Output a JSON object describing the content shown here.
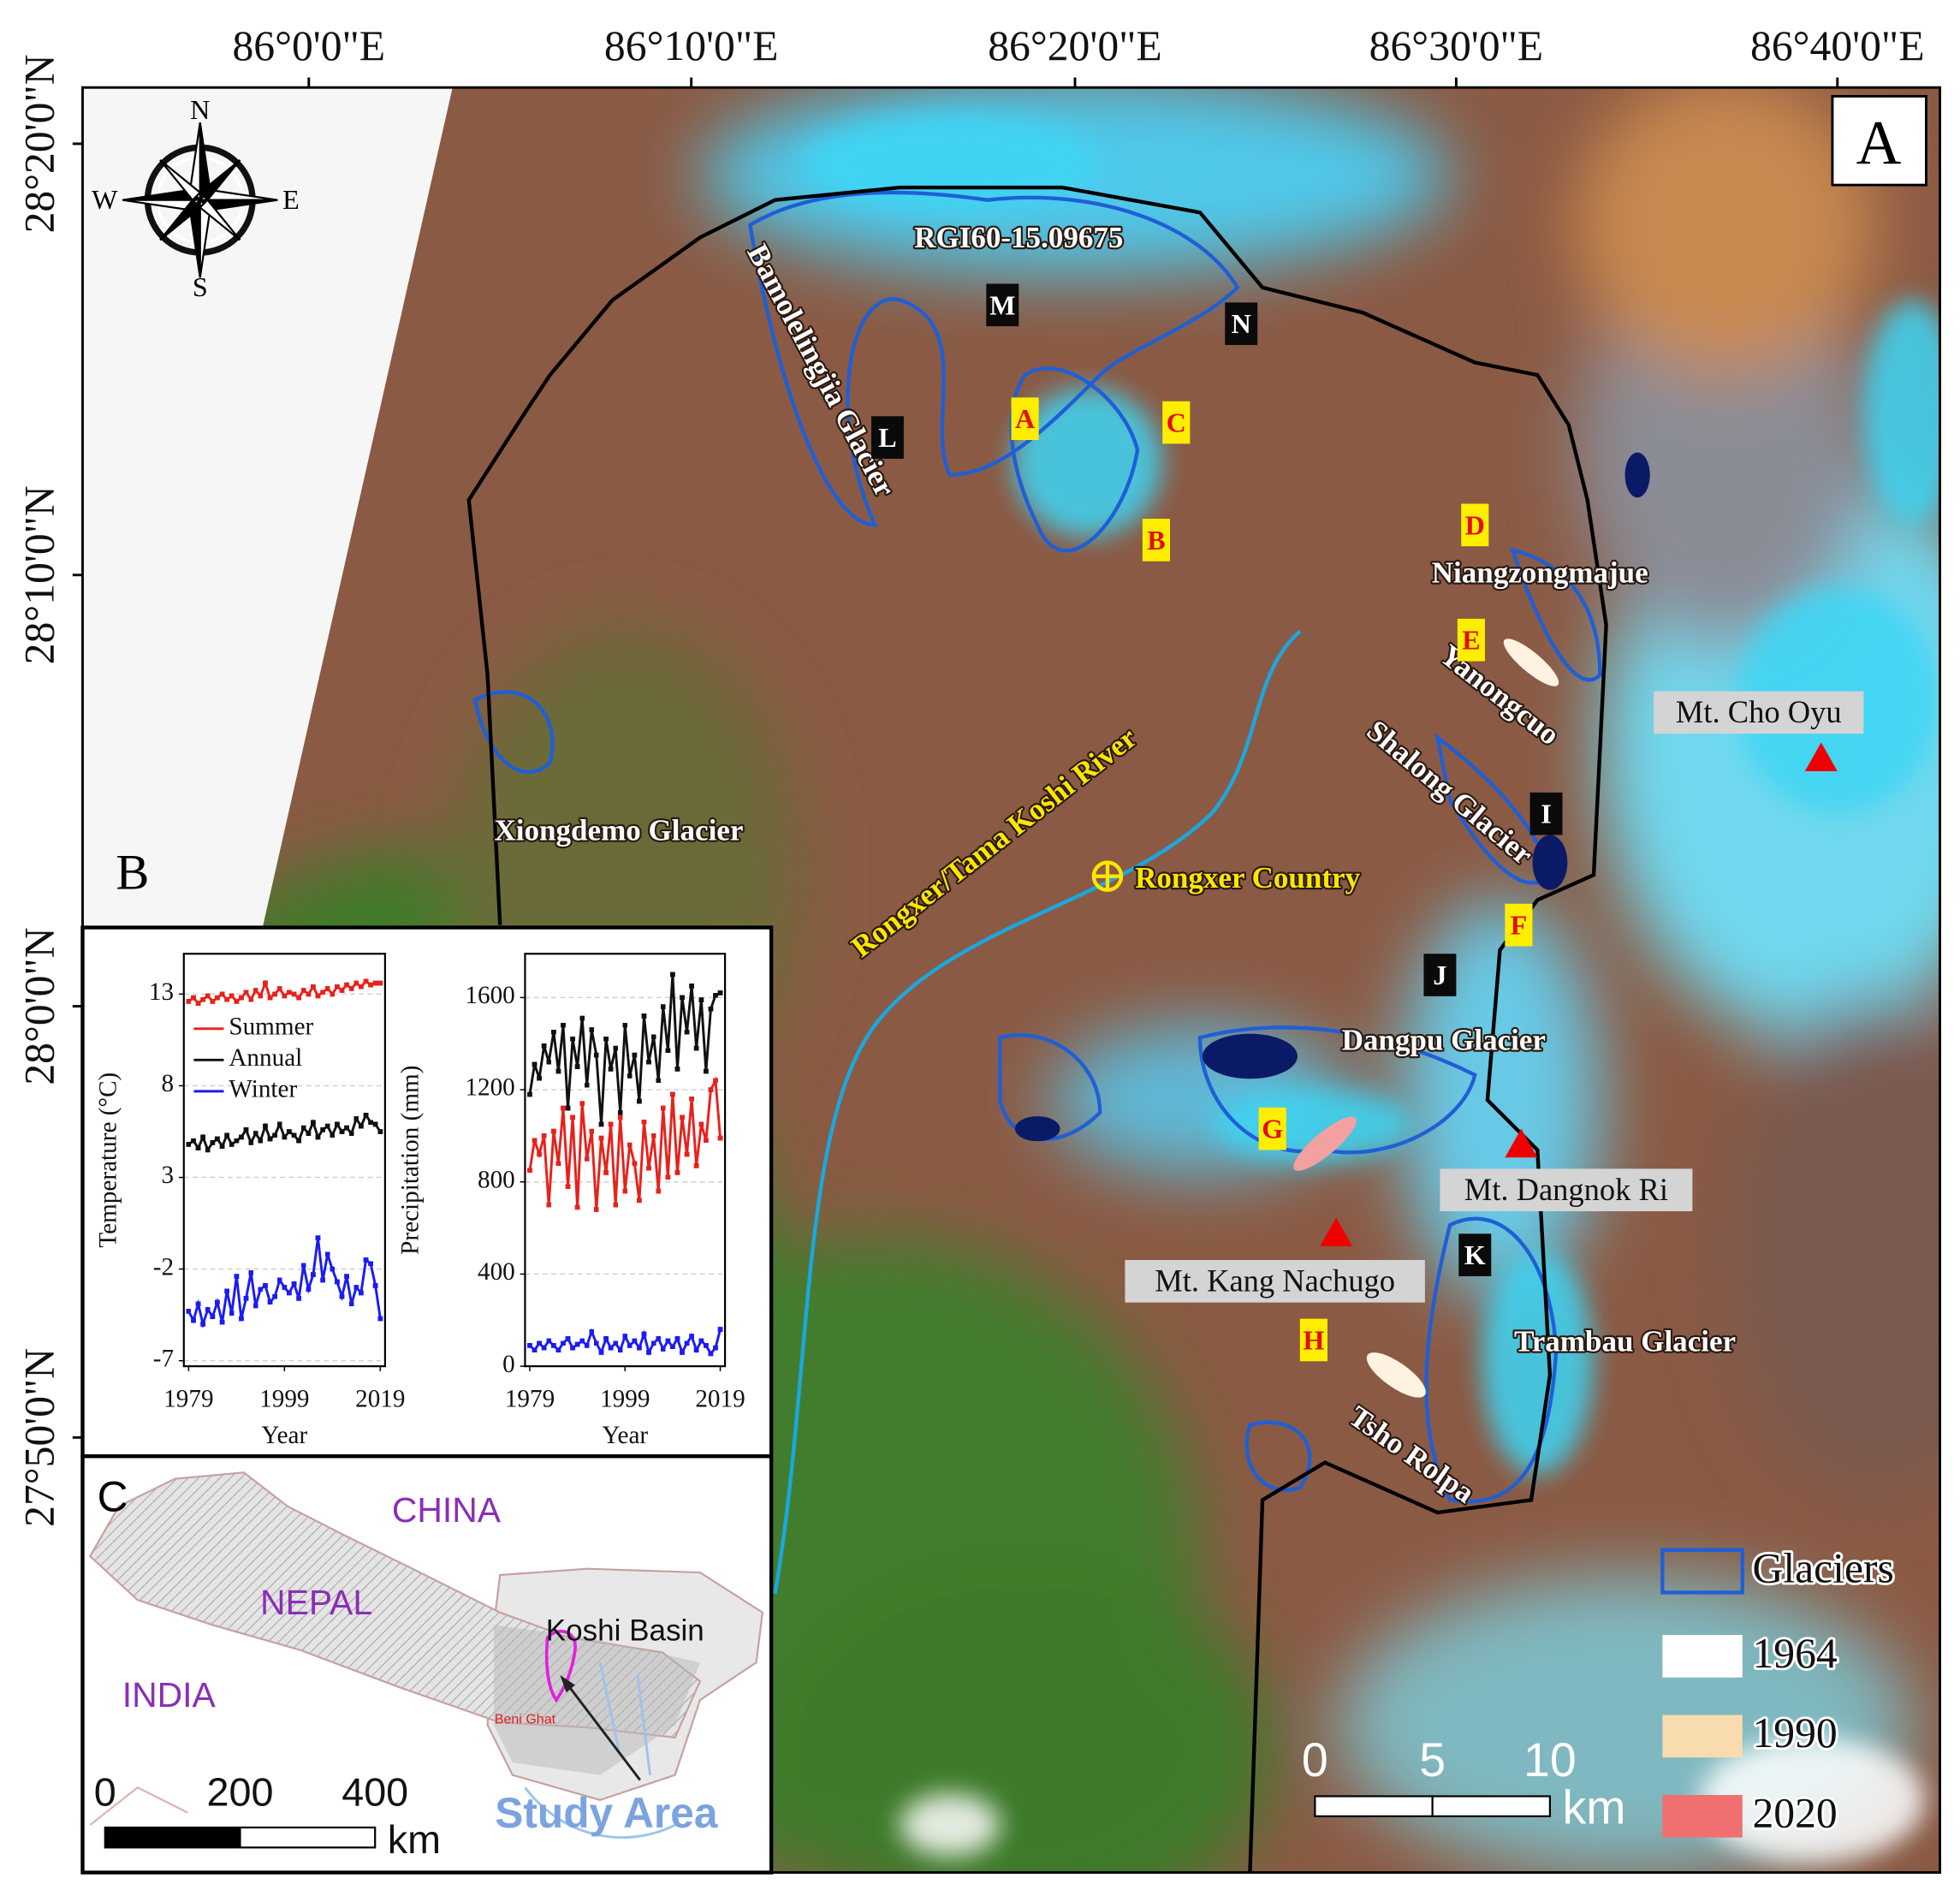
{
  "map": {
    "panel": "A",
    "lon_labels": [
      "86°0'0\"E",
      "86°10'0\"E",
      "86°20'0\"E",
      "86°30'0\"E",
      "86°40'0\"E"
    ],
    "lat_labels": [
      "28°20'0\"N",
      "28°10'0\"N",
      "28°0'0\"N",
      "27°50'0\"N"
    ],
    "compass": {
      "n": "N",
      "e": "E",
      "s": "S",
      "w": "W"
    },
    "glaciers": {
      "rgi": "RGI60-15.09675",
      "bamolelingjia": "Bamolelingjia Glacier",
      "xiongdemo": "Xiongdemo Glacier",
      "niangzongmajue": "Niangzongmajue",
      "yanongcuo": "Yanongcuo",
      "shalong": "Shalong Glacier",
      "dangpu": "Dangpu Glacier",
      "trambau": "Trambau Glacier",
      "tsho_rolpa": "Tsho Rolpa"
    },
    "river": "Rongxer/Tama Koshi River",
    "county": "Rongxer Country",
    "peaks": {
      "cho_oyu": "Mt. Cho Oyu",
      "dangnok_ri": "Mt. Dangnok Ri",
      "kang_nachugo": "Mt. Kang Nachugo"
    },
    "sites": [
      "A",
      "B",
      "C",
      "D",
      "E",
      "F",
      "G",
      "H"
    ],
    "sections": [
      "M",
      "N",
      "L",
      "I",
      "J",
      "K"
    ],
    "legend": {
      "glaciers": {
        "label": "Glaciers",
        "color": "#1f5fd6"
      },
      "items": [
        {
          "label": "1964",
          "color": "#ffffff"
        },
        {
          "label": "1990",
          "color": "#f8dcb0"
        },
        {
          "label": "2020",
          "color": "#f07070"
        }
      ]
    },
    "scale": {
      "ticks": [
        0,
        5,
        10
      ],
      "unit": "km"
    }
  },
  "panel_b": "B",
  "chart_data": [
    {
      "type": "line",
      "ylabel": "Temperature (°C)",
      "xlabel": "Year",
      "x": [
        1979,
        1980,
        1981,
        1982,
        1983,
        1984,
        1985,
        1986,
        1987,
        1988,
        1989,
        1990,
        1991,
        1992,
        1993,
        1994,
        1995,
        1996,
        1997,
        1998,
        1999,
        2000,
        2001,
        2002,
        2003,
        2004,
        2005,
        2006,
        2007,
        2008,
        2009,
        2010,
        2011,
        2012,
        2013,
        2014,
        2015,
        2016,
        2017,
        2018,
        2019
      ],
      "xlim": [
        1978,
        2020
      ],
      "xticks": [
        1979,
        1999,
        2019
      ],
      "ylim": [
        -7.3,
        15.2
      ],
      "yticks": [
        13,
        8,
        3,
        -2,
        -7
      ],
      "grid": true,
      "legend": "upper left",
      "series": [
        {
          "name": "Summer",
          "color": "#e8211b",
          "values": [
            12.6,
            12.8,
            12.5,
            12.7,
            12.9,
            12.6,
            12.8,
            13.0,
            12.7,
            12.9,
            12.6,
            12.8,
            13.1,
            12.7,
            13.2,
            12.9,
            13.6,
            12.8,
            13.0,
            13.3,
            12.9,
            13.1,
            13.0,
            12.8,
            13.2,
            13.0,
            13.4,
            12.9,
            13.1,
            13.3,
            13.0,
            13.4,
            13.2,
            13.5,
            13.3,
            13.6,
            13.4,
            13.7,
            13.5,
            13.6,
            13.6
          ]
        },
        {
          "name": "Annual",
          "color": "#111111",
          "values": [
            4.8,
            5.0,
            4.6,
            5.2,
            4.5,
            4.9,
            5.1,
            4.7,
            5.3,
            4.8,
            5.0,
            5.2,
            5.6,
            4.9,
            5.4,
            5.0,
            5.8,
            5.1,
            5.3,
            5.9,
            5.2,
            5.5,
            5.3,
            5.0,
            5.7,
            5.4,
            6.0,
            5.2,
            5.6,
            5.8,
            5.3,
            5.9,
            5.5,
            5.7,
            5.4,
            6.2,
            5.8,
            6.4,
            6.0,
            5.9,
            5.5
          ]
        },
        {
          "name": "Winter",
          "color": "#1b1bf5",
          "values": [
            -4.3,
            -4.8,
            -3.9,
            -5.0,
            -4.2,
            -4.6,
            -3.8,
            -4.9,
            -3.2,
            -4.4,
            -2.4,
            -4.7,
            -3.6,
            -2.2,
            -4.0,
            -3.1,
            -2.9,
            -3.8,
            -3.5,
            -2.6,
            -3.0,
            -3.3,
            -2.8,
            -3.6,
            -1.8,
            -3.1,
            -2.3,
            -0.3,
            -2.6,
            -1.2,
            -2.0,
            -2.7,
            -3.5,
            -2.4,
            -3.9,
            -3.0,
            -3.3,
            -1.5,
            -1.7,
            -2.9,
            -4.7
          ]
        }
      ]
    },
    {
      "type": "line",
      "ylabel": "Precipitation (mm)",
      "xlabel": "Year",
      "x": [
        1979,
        1980,
        1981,
        1982,
        1983,
        1984,
        1985,
        1986,
        1987,
        1988,
        1989,
        1990,
        1991,
        1992,
        1993,
        1994,
        1995,
        1996,
        1997,
        1998,
        1999,
        2000,
        2001,
        2002,
        2003,
        2004,
        2005,
        2006,
        2007,
        2008,
        2009,
        2010,
        2011,
        2012,
        2013,
        2014,
        2015,
        2016,
        2017,
        2018,
        2019
      ],
      "xlim": [
        1978,
        2020
      ],
      "xticks": [
        1979,
        1999,
        2019
      ],
      "ylim": [
        0,
        1790
      ],
      "yticks": [
        1600,
        1200,
        800,
        400,
        0
      ],
      "grid": true,
      "series": [
        {
          "color": "#111111",
          "values": [
            1180,
            1310,
            1250,
            1390,
            1320,
            1450,
            1280,
            1480,
            1120,
            1420,
            1300,
            1510,
            1220,
            1460,
            1350,
            1050,
            1420,
            1290,
            1380,
            1100,
            1480,
            1260,
            1350,
            1150,
            1520,
            1320,
            1430,
            1240,
            1560,
            1370,
            1700,
            1290,
            1600,
            1450,
            1650,
            1380,
            1590,
            1280,
            1550,
            1610,
            1620
          ]
        },
        {
          "color": "#e8211b",
          "values": [
            850,
            980,
            920,
            1000,
            700,
            1020,
            880,
            1120,
            780,
            1080,
            690,
            1140,
            900,
            1020,
            680,
            990,
            840,
            1050,
            700,
            1080,
            760,
            960,
            880,
            720,
            1060,
            860,
            1000,
            760,
            1120,
            820,
            1180,
            840,
            1080,
            920,
            1160,
            870,
            1050,
            980,
            1200,
            1240,
            990
          ]
        },
        {
          "color": "#1b1bf5",
          "values": [
            90,
            70,
            100,
            80,
            110,
            90,
            70,
            100,
            120,
            80,
            95,
            110,
            90,
            150,
            100,
            60,
            120,
            80,
            100,
            70,
            130,
            90,
            110,
            80,
            140,
            60,
            100,
            120,
            75,
            110,
            85,
            120,
            60,
            100,
            130,
            70,
            110,
            90,
            55,
            80,
            160
          ]
        }
      ]
    }
  ],
  "panel_c": {
    "label": "C",
    "china": "CHINA",
    "nepal": "NEPAL",
    "india": "INDIA",
    "basin": "Koshi Basin",
    "station": "Beni Ghat",
    "study_area": "Study Area",
    "scale": {
      "ticks": [
        0,
        200,
        400
      ],
      "unit": "km"
    }
  }
}
